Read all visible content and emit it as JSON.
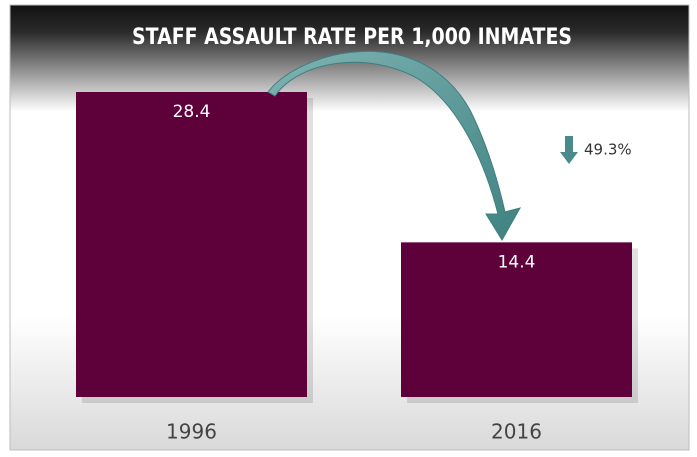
{
  "chart_data": {
    "type": "bar",
    "title": "STAFF ASSAULT RATE PER 1,000 INMATES",
    "categories": [
      "1996",
      "2016"
    ],
    "values": [
      28.4,
      14.4
    ],
    "color": "#5e0039",
    "annotation": "49.3%"
  }
}
